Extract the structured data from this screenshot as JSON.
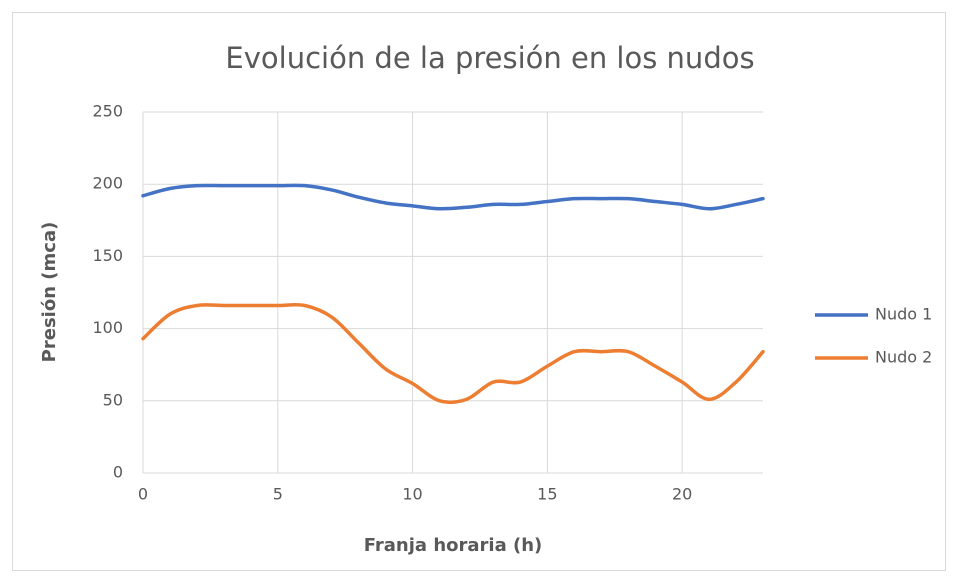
{
  "chart_data": {
    "type": "line",
    "title": "Evolución de la presión en los nudos",
    "xlabel": "Franja horaria (h)",
    "ylabel": "Presión (mca)",
    "x": [
      0,
      1,
      2,
      3,
      4,
      5,
      6,
      7,
      8,
      9,
      10,
      11,
      12,
      13,
      14,
      15,
      16,
      17,
      18,
      19,
      20,
      21,
      22,
      23
    ],
    "series": [
      {
        "name": "Nudo 1",
        "color": "#4472c4",
        "values": [
          192,
          197,
          199,
          199,
          199,
          199,
          199,
          196,
          191,
          187,
          185,
          183,
          184,
          186,
          186,
          188,
          190,
          190,
          190,
          188,
          186,
          183,
          186,
          190
        ]
      },
      {
        "name": "Nudo 2",
        "color": "#ed7d31",
        "values": [
          93,
          110,
          116,
          116,
          116,
          116,
          116,
          108,
          90,
          72,
          62,
          50,
          51,
          63,
          63,
          74,
          84,
          84,
          84,
          74,
          63,
          51,
          63,
          84
        ]
      }
    ],
    "xlim": [
      0,
      23
    ],
    "xticks": [
      0,
      5,
      10,
      15,
      20
    ],
    "ylim": [
      0,
      250
    ],
    "yticks": [
      0,
      50,
      100,
      150,
      200,
      250
    ],
    "grid": true,
    "legend": "right",
    "smooth": true
  }
}
